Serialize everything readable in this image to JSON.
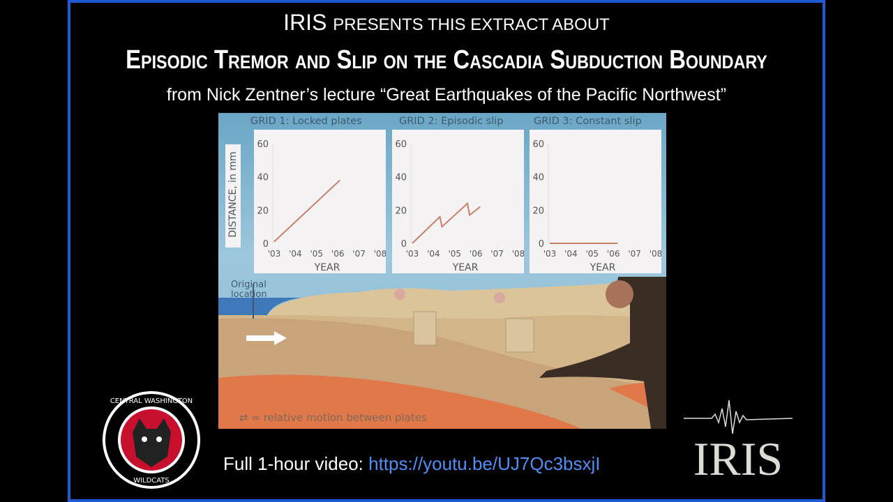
{
  "header": {
    "brand": "IRIS",
    "presents": "presents this extract about",
    "title": "Episodic Tremor and Slip on the Cascadia Subduction Boundary",
    "subtitle": "from Nick Zentner’s lecture “Great Earthquakes of the Pacific Northwest”"
  },
  "slide": {
    "ylabel": "DISTANCE, in mm",
    "original_location": "Original location",
    "legend_text": "= relative motion between plates"
  },
  "chart_data": [
    {
      "type": "line",
      "title": "GRID 1: Locked plates",
      "xlabel": "YEAR",
      "ylabel": "DISTANCE, in mm",
      "xticks": [
        "'03",
        "'04",
        "'05",
        "'06",
        "'07",
        "'08"
      ],
      "yticks": [
        "0",
        "20",
        "40",
        "60"
      ],
      "xlim": [
        2003,
        2008
      ],
      "ylim": [
        0,
        60
      ],
      "x": [
        2003,
        2006.1
      ],
      "y": [
        1,
        38
      ],
      "color": "#c9806a"
    },
    {
      "type": "line",
      "title": "GRID 2: Episodic slip",
      "xlabel": "YEAR",
      "ylabel": "DISTANCE, in mm",
      "xticks": [
        "'03",
        "'04",
        "'05",
        "'06",
        "'07",
        "'08"
      ],
      "yticks": [
        "0",
        "20",
        "40",
        "60"
      ],
      "xlim": [
        2003,
        2008
      ],
      "ylim": [
        0,
        60
      ],
      "x": [
        2003,
        2004.3,
        2004.4,
        2005.6,
        2005.7,
        2006.2
      ],
      "y": [
        0,
        16,
        10,
        24,
        17,
        22
      ],
      "color": "#c9806a"
    },
    {
      "type": "line",
      "title": "GRID 3: Constant slip",
      "xlabel": "YEAR",
      "ylabel": "DISTANCE, in mm",
      "xticks": [
        "'03",
        "'04",
        "'05",
        "'06",
        "'07",
        "'08"
      ],
      "yticks": [
        "0",
        "20",
        "40",
        "60"
      ],
      "xlim": [
        2003,
        2008
      ],
      "ylim": [
        0,
        60
      ],
      "x": [
        2003,
        2006.2
      ],
      "y": [
        0,
        0
      ],
      "color": "#c9806a"
    }
  ],
  "logos": {
    "cwu": "CENTRAL WASHINGTON UNIVERSITY WILDCATS",
    "iris": "IRIS"
  },
  "footer": {
    "label": "Full 1-hour video:",
    "url": "https://youtu.be/UJ7Qc3bsxjI"
  },
  "colors": {
    "border": "#1f5bd6",
    "link": "#4f8ff7",
    "background": "#000000"
  }
}
